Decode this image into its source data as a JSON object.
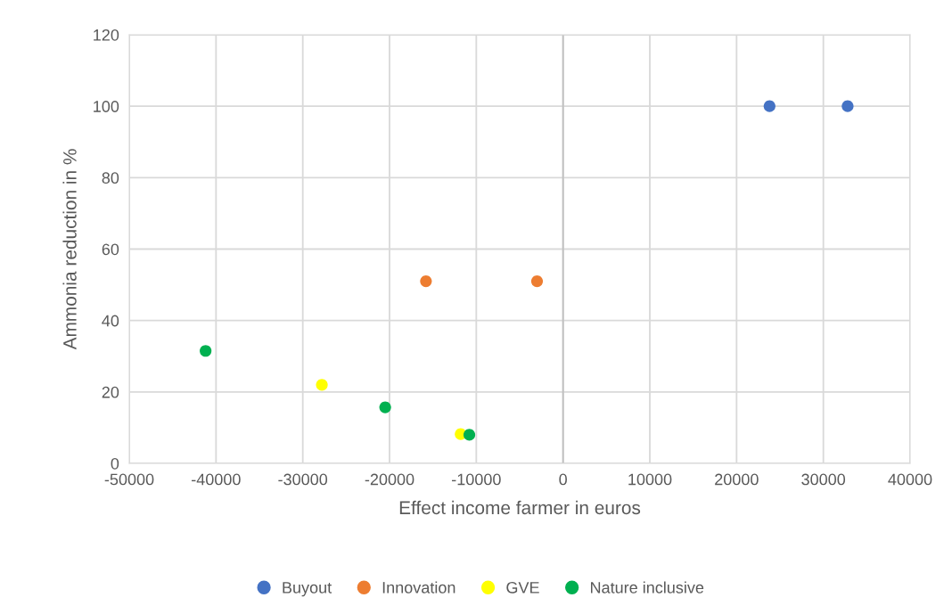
{
  "chart_data": {
    "type": "scatter",
    "xlabel": "Effect income farmer in euros",
    "ylabel": "Ammonia reduction in %",
    "xlim": [
      -50000,
      40000
    ],
    "xticks": [
      -50000,
      -40000,
      -30000,
      -20000,
      -10000,
      0,
      10000,
      20000,
      30000,
      40000
    ],
    "ylim": [
      0,
      120
    ],
    "yticks": [
      0,
      20,
      40,
      60,
      80,
      100,
      120
    ],
    "grid": true,
    "legend": "bottom",
    "marker": "circle",
    "ref_lines": [
      {
        "axis": "x",
        "value": 0,
        "color": "#bfbfbf"
      }
    ],
    "series": [
      {
        "name": "Buyout",
        "color": "#4472c4",
        "x": [
          23800,
          32800
        ],
        "values": [
          100,
          100
        ]
      },
      {
        "name": "Innovation",
        "color": "#ed7d31",
        "x": [
          -15800,
          -3000
        ],
        "values": [
          51,
          51
        ]
      },
      {
        "name": "GVE",
        "color": "#ffff00",
        "x": [
          -27800,
          -11800
        ],
        "values": [
          22,
          8.2
        ]
      },
      {
        "name": "Nature inclusive",
        "color": "#00b050",
        "x": [
          -41200,
          -20500,
          -10800
        ],
        "values": [
          31.5,
          15.7,
          8
        ]
      }
    ]
  }
}
